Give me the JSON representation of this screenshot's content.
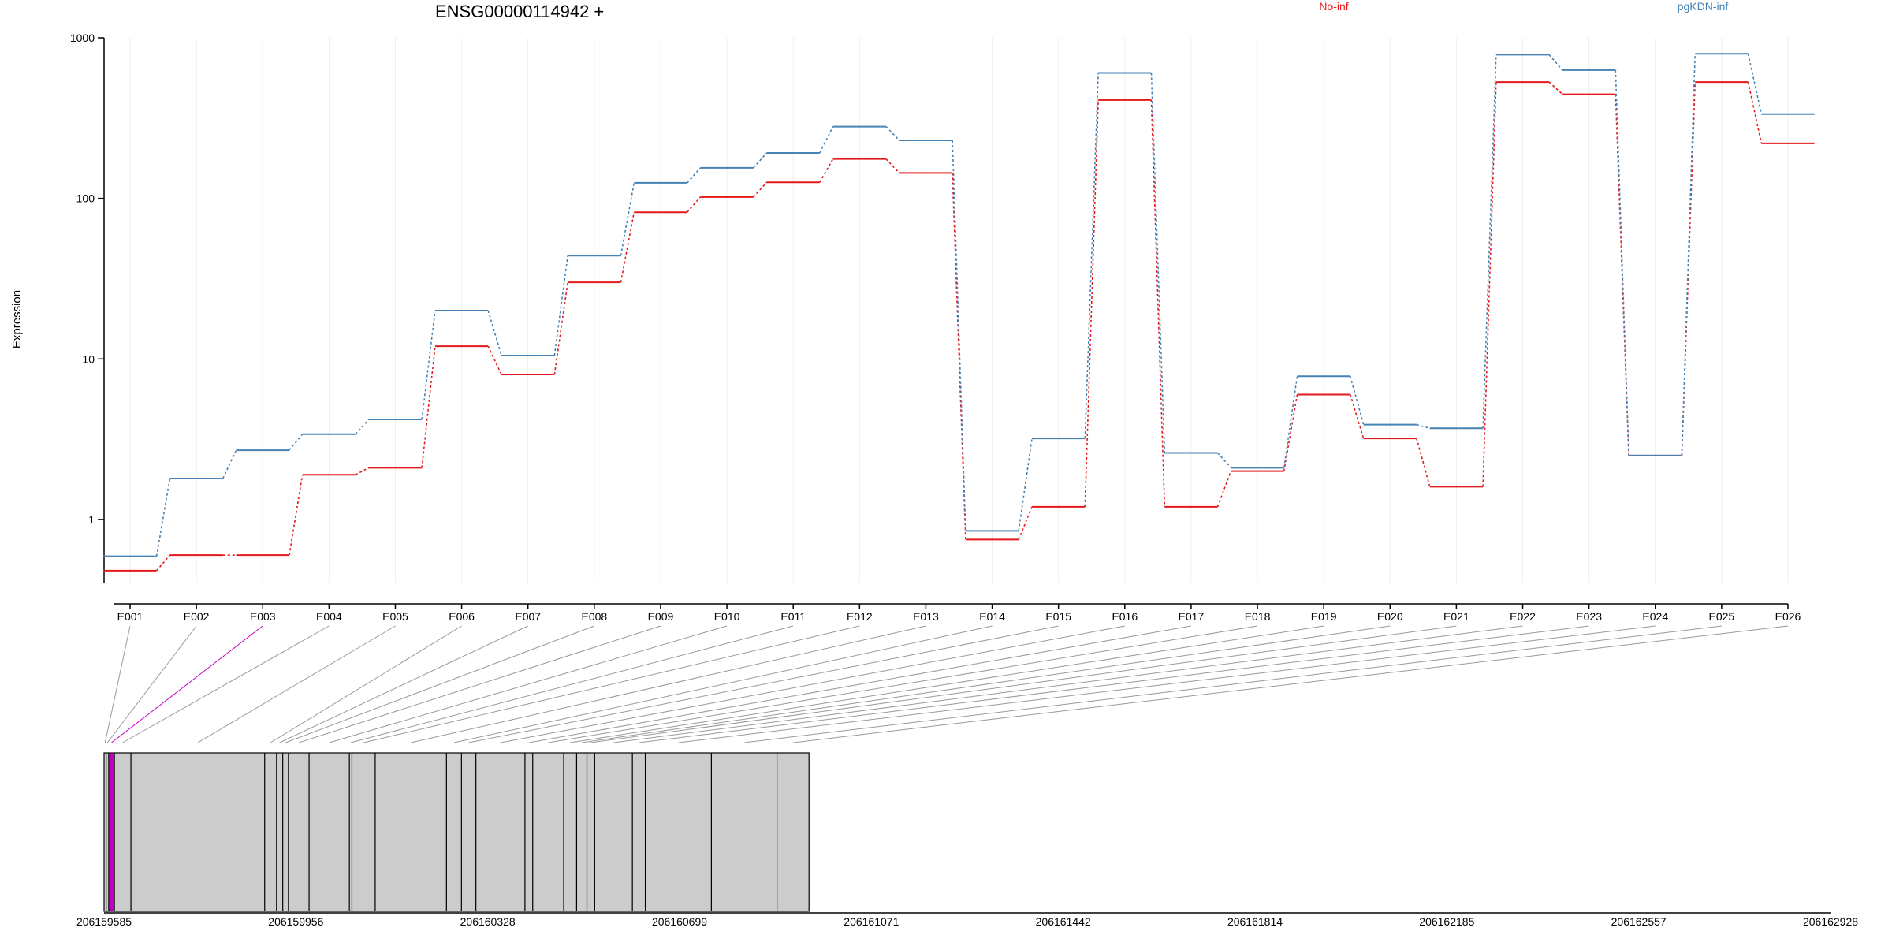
{
  "chart_data": {
    "type": "line",
    "title": "ENSG00000114942 +",
    "ylabel": "Expression",
    "y_scale": "log",
    "ylim": [
      0.4,
      1000
    ],
    "y_ticks": [
      "1",
      "10",
      "100",
      "1000"
    ],
    "categories": [
      "E001",
      "E002",
      "E003",
      "E004",
      "E005",
      "E006",
      "E007",
      "E008",
      "E009",
      "E010",
      "E011",
      "E012",
      "E013",
      "E014",
      "E015",
      "E016",
      "E017",
      "E018",
      "E019",
      "E020",
      "E021",
      "E022",
      "E023",
      "E024",
      "E025",
      "E026"
    ],
    "series": [
      {
        "name": "No-inf",
        "color": "#e31a1c",
        "values": [
          0.48,
          0.6,
          0.6,
          1.9,
          2.1,
          12,
          8,
          30,
          82,
          102,
          126,
          176,
          144,
          0.75,
          1.2,
          410,
          1.2,
          2.0,
          6.0,
          3.2,
          1.6,
          530,
          445,
          2.5,
          530,
          220
        ]
      },
      {
        "name": "pgKDN-inf",
        "color": "#4682b4",
        "values": [
          0.59,
          1.8,
          2.7,
          3.4,
          4.2,
          20,
          10.5,
          44,
          125,
          155,
          192,
          280,
          230,
          0.85,
          3.2,
          605,
          2.6,
          2.1,
          7.8,
          3.9,
          3.7,
          785,
          630,
          2.5,
          795,
          335
        ]
      }
    ],
    "legend_placement": "top",
    "gene_model": {
      "coordinate_ticks": [
        "206159585",
        "206159956",
        "206160328",
        "206160699",
        "206161071",
        "206161442",
        "206161814",
        "206162185",
        "206162557",
        "206162928"
      ],
      "coordinate_range": [
        206159585,
        206162928
      ],
      "exons": [
        [
          206159585,
          206159589
        ],
        [
          206159589,
          206159594
        ],
        [
          206159594,
          206159605
        ],
        [
          206159605,
          206159637
        ],
        [
          206159637,
          206159896
        ],
        [
          206159896,
          206159919
        ],
        [
          206159919,
          206159931
        ],
        [
          206159931,
          206159942
        ],
        [
          206159942,
          206159982
        ],
        [
          206159982,
          206160060
        ],
        [
          206160060,
          206160065
        ],
        [
          206160065,
          206160110
        ],
        [
          206160110,
          206160248
        ],
        [
          206160248,
          206160277
        ],
        [
          206160277,
          206160305
        ],
        [
          206160305,
          206160400
        ],
        [
          206160400,
          206160415
        ],
        [
          206160415,
          206160475
        ],
        [
          206160475,
          206160500
        ],
        [
          206160500,
          206160520
        ],
        [
          206160520,
          206160535
        ],
        [
          206160535,
          206160608
        ],
        [
          206160608,
          206160633
        ],
        [
          206160633,
          206160761
        ],
        [
          206160761,
          206160888
        ],
        [
          206160888,
          206160950
        ]
      ],
      "highlight_exons": [
        "E003"
      ],
      "highlight_color": "#c000c0",
      "box_color": "#cccccc"
    }
  }
}
